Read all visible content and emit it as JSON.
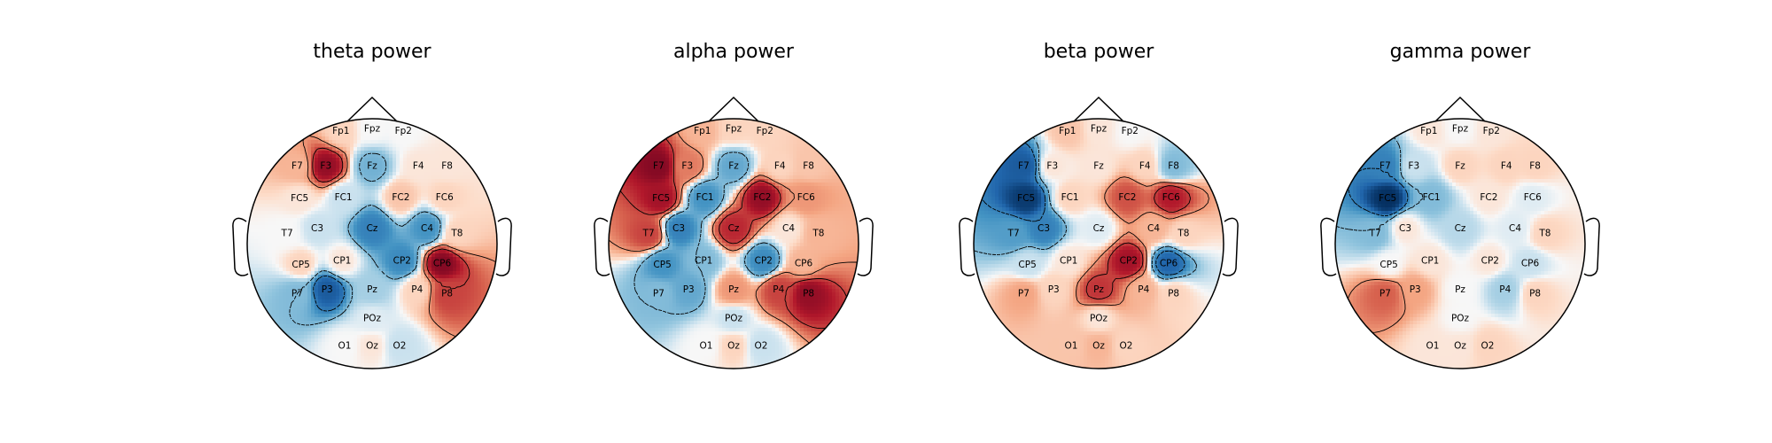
{
  "chart_data": [
    {
      "type": "heatmap",
      "subtype": "scalp topomap",
      "title": "theta power",
      "colormap": "RdBu_r",
      "electrodes": [
        {
          "name": "Fp1",
          "value": 0.1
        },
        {
          "name": "Fpz",
          "value": 0.0
        },
        {
          "name": "Fp2",
          "value": 0.0
        },
        {
          "name": "F7",
          "value": 0.2
        },
        {
          "name": "F3",
          "value": 0.85
        },
        {
          "name": "Fz",
          "value": -0.35
        },
        {
          "name": "F4",
          "value": 0.05
        },
        {
          "name": "F8",
          "value": 0.05
        },
        {
          "name": "FC5",
          "value": 0.05
        },
        {
          "name": "FC1",
          "value": -0.1
        },
        {
          "name": "FC2",
          "value": 0.15
        },
        {
          "name": "FC6",
          "value": 0.1
        },
        {
          "name": "T7",
          "value": 0.0
        },
        {
          "name": "C3",
          "value": -0.1
        },
        {
          "name": "Cz",
          "value": -0.6
        },
        {
          "name": "C4",
          "value": -0.5
        },
        {
          "name": "T8",
          "value": 0.1
        },
        {
          "name": "CP5",
          "value": 0.1
        },
        {
          "name": "CP1",
          "value": 0.05
        },
        {
          "name": "CP2",
          "value": -0.55
        },
        {
          "name": "CP6",
          "value": 0.9
        },
        {
          "name": "P7",
          "value": -0.3
        },
        {
          "name": "P3",
          "value": -0.8
        },
        {
          "name": "Pz",
          "value": -0.2
        },
        {
          "name": "P4",
          "value": 0.1
        },
        {
          "name": "P8",
          "value": 0.6
        },
        {
          "name": "POz",
          "value": -0.05
        },
        {
          "name": "O1",
          "value": 0.0
        },
        {
          "name": "Oz",
          "value": 0.05
        },
        {
          "name": "O2",
          "value": -0.1
        }
      ]
    },
    {
      "type": "heatmap",
      "subtype": "scalp topomap",
      "title": "alpha power",
      "colormap": "RdBu_r",
      "electrodes": [
        {
          "name": "Fp1",
          "value": 0.2
        },
        {
          "name": "Fpz",
          "value": 0.1
        },
        {
          "name": "Fp2",
          "value": 0.1
        },
        {
          "name": "F7",
          "value": 0.9
        },
        {
          "name": "F3",
          "value": 0.4
        },
        {
          "name": "Fz",
          "value": -0.4
        },
        {
          "name": "F4",
          "value": 0.1
        },
        {
          "name": "F8",
          "value": 0.15
        },
        {
          "name": "FC5",
          "value": 0.8
        },
        {
          "name": "FC1",
          "value": -0.5
        },
        {
          "name": "FC2",
          "value": 0.85
        },
        {
          "name": "FC6",
          "value": 0.3
        },
        {
          "name": "T7",
          "value": 0.6
        },
        {
          "name": "C3",
          "value": -0.6
        },
        {
          "name": "Cz",
          "value": 0.7
        },
        {
          "name": "C4",
          "value": 0.05
        },
        {
          "name": "T8",
          "value": 0.2
        },
        {
          "name": "CP5",
          "value": -0.5
        },
        {
          "name": "CP1",
          "value": -0.3
        },
        {
          "name": "CP2",
          "value": -0.55
        },
        {
          "name": "CP6",
          "value": 0.2
        },
        {
          "name": "P7",
          "value": -0.3
        },
        {
          "name": "P3",
          "value": -0.4
        },
        {
          "name": "Pz",
          "value": 0.3
        },
        {
          "name": "P4",
          "value": 0.6
        },
        {
          "name": "P8",
          "value": 0.85
        },
        {
          "name": "POz",
          "value": -0.1
        },
        {
          "name": "O1",
          "value": 0.0
        },
        {
          "name": "Oz",
          "value": 0.1
        },
        {
          "name": "O2",
          "value": -0.1
        }
      ]
    },
    {
      "type": "heatmap",
      "subtype": "scalp topomap",
      "title": "beta power",
      "colormap": "RdBu_r",
      "electrodes": [
        {
          "name": "Fp1",
          "value": 0.15
        },
        {
          "name": "Fpz",
          "value": 0.05
        },
        {
          "name": "Fp2",
          "value": 0.0
        },
        {
          "name": "F7",
          "value": -0.8
        },
        {
          "name": "F3",
          "value": 0.05
        },
        {
          "name": "Fz",
          "value": 0.05
        },
        {
          "name": "F4",
          "value": 0.1
        },
        {
          "name": "F8",
          "value": -0.3
        },
        {
          "name": "FC5",
          "value": -0.95
        },
        {
          "name": "FC1",
          "value": 0.1
        },
        {
          "name": "FC2",
          "value": 0.55
        },
        {
          "name": "FC6",
          "value": 0.75
        },
        {
          "name": "T7",
          "value": -0.45
        },
        {
          "name": "C3",
          "value": -0.6
        },
        {
          "name": "Cz",
          "value": -0.05
        },
        {
          "name": "C4",
          "value": 0.2
        },
        {
          "name": "T8",
          "value": 0.1
        },
        {
          "name": "CP5",
          "value": -0.1
        },
        {
          "name": "CP1",
          "value": 0.05
        },
        {
          "name": "CP2",
          "value": 0.8
        },
        {
          "name": "CP6",
          "value": -0.75
        },
        {
          "name": "P7",
          "value": 0.25
        },
        {
          "name": "P3",
          "value": 0.1
        },
        {
          "name": "Pz",
          "value": 0.65
        },
        {
          "name": "P4",
          "value": 0.2
        },
        {
          "name": "P8",
          "value": 0.1
        },
        {
          "name": "POz",
          "value": 0.05
        },
        {
          "name": "O1",
          "value": 0.15
        },
        {
          "name": "Oz",
          "value": 0.2
        },
        {
          "name": "O2",
          "value": 0.1
        }
      ]
    },
    {
      "type": "heatmap",
      "subtype": "scalp topomap",
      "title": "gamma power",
      "colormap": "RdBu_r",
      "electrodes": [
        {
          "name": "Fp1",
          "value": 0.05
        },
        {
          "name": "Fpz",
          "value": 0.0
        },
        {
          "name": "Fp2",
          "value": 0.05
        },
        {
          "name": "F7",
          "value": -0.6
        },
        {
          "name": "F3",
          "value": -0.1
        },
        {
          "name": "Fz",
          "value": 0.1
        },
        {
          "name": "F4",
          "value": 0.1
        },
        {
          "name": "F8",
          "value": 0.1
        },
        {
          "name": "FC5",
          "value": -1.0
        },
        {
          "name": "FC1",
          "value": -0.3
        },
        {
          "name": "FC2",
          "value": 0.05
        },
        {
          "name": "FC6",
          "value": -0.05
        },
        {
          "name": "T7",
          "value": -0.3
        },
        {
          "name": "C3",
          "value": 0.05
        },
        {
          "name": "Cz",
          "value": -0.15
        },
        {
          "name": "C4",
          "value": -0.05
        },
        {
          "name": "T8",
          "value": 0.1
        },
        {
          "name": "CP5",
          "value": 0.0
        },
        {
          "name": "CP1",
          "value": 0.05
        },
        {
          "name": "CP2",
          "value": 0.05
        },
        {
          "name": "CP6",
          "value": -0.1
        },
        {
          "name": "P7",
          "value": 0.5
        },
        {
          "name": "P3",
          "value": 0.25
        },
        {
          "name": "Pz",
          "value": 0.0
        },
        {
          "name": "P4",
          "value": -0.2
        },
        {
          "name": "P8",
          "value": 0.1
        },
        {
          "name": "POz",
          "value": 0.0
        },
        {
          "name": "O1",
          "value": 0.05
        },
        {
          "name": "Oz",
          "value": 0.05
        },
        {
          "name": "O2",
          "value": 0.1
        }
      ]
    }
  ]
}
